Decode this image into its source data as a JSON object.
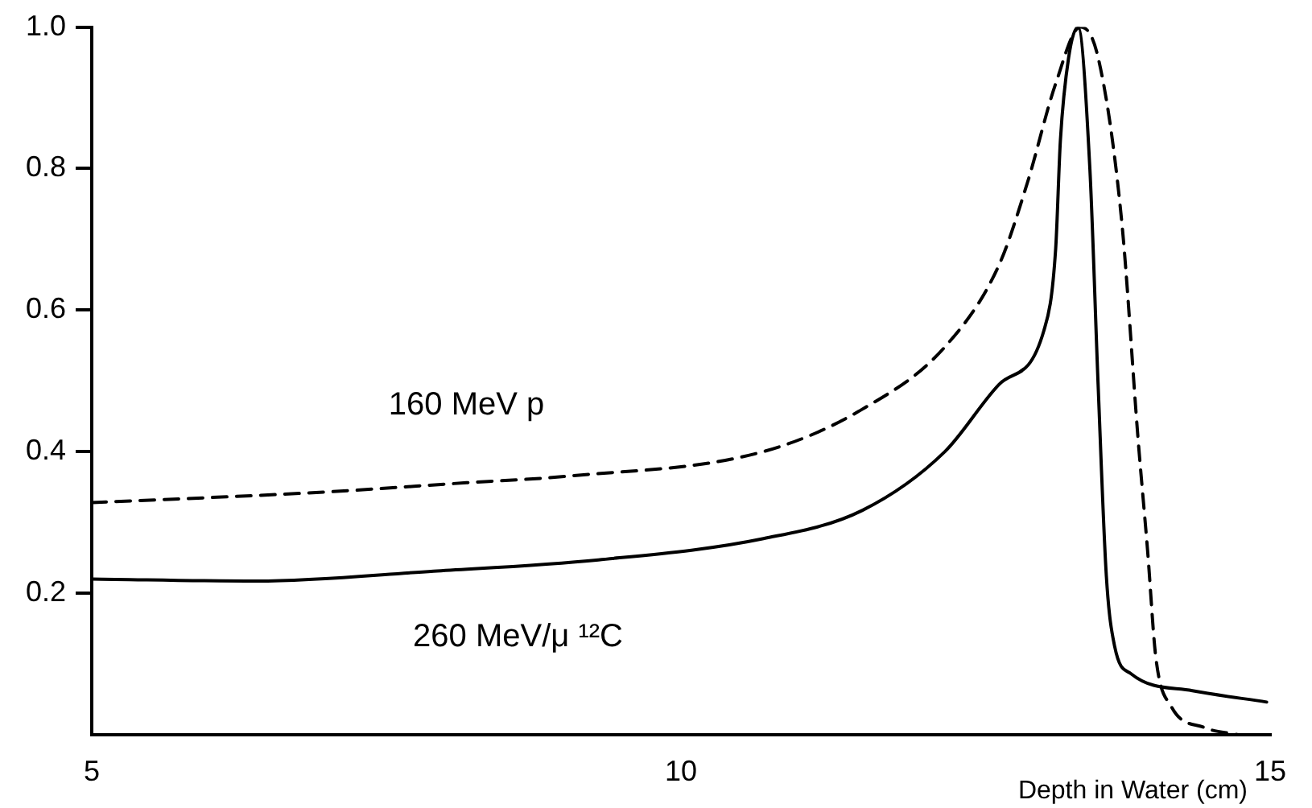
{
  "chart_data": {
    "type": "line",
    "xlabel": "Depth in Water (cm)",
    "xlim": [
      5,
      15
    ],
    "xticks": [
      5,
      10,
      15
    ],
    "ylim": [
      0,
      1.0
    ],
    "yticks": [
      0.2,
      0.4,
      0.6,
      0.8,
      {
        "value": 1.0,
        "label": "1.0"
      }
    ],
    "grid": false,
    "legend": false,
    "marker": "none",
    "series": [
      {
        "name": "160 MeV p",
        "color": "#000000",
        "line_style": "dashed",
        "x": [
          5,
          6,
          7,
          8.18,
          9.02,
          10.7,
          11.54,
          12.24,
          12.7,
          12.94,
          13.18,
          13.39,
          13.54,
          13.74,
          13.88,
          13.96,
          14.03,
          14.16,
          14.44,
          14.72
        ],
        "values": [
          0.328,
          0.335,
          0.343,
          0.356,
          0.365,
          0.4,
          0.46,
          0.548,
          0.664,
          0.78,
          0.92,
          1.0,
          0.957,
          0.726,
          0.416,
          0.26,
          0.109,
          0.04,
          0.01,
          0.0
        ]
      },
      {
        "name": "260 MeV/μ ¹²C",
        "color": "#000000",
        "line_style": "solid",
        "x": [
          5,
          6.4,
          7.9,
          9.3,
          10.7,
          11.54,
          12.24,
          12.7,
          13.08,
          13.18,
          13.22,
          13.29,
          13.37,
          13.47,
          13.54,
          13.61,
          13.68,
          13.82,
          14.34,
          14.97
        ],
        "values": [
          0.22,
          0.217,
          0.231,
          0.247,
          0.277,
          0.317,
          0.4,
          0.495,
          0.571,
          0.687,
          0.84,
          0.957,
          1.0,
          0.8,
          0.495,
          0.224,
          0.125,
          0.086,
          0.062,
          0.046
        ]
      }
    ]
  }
}
